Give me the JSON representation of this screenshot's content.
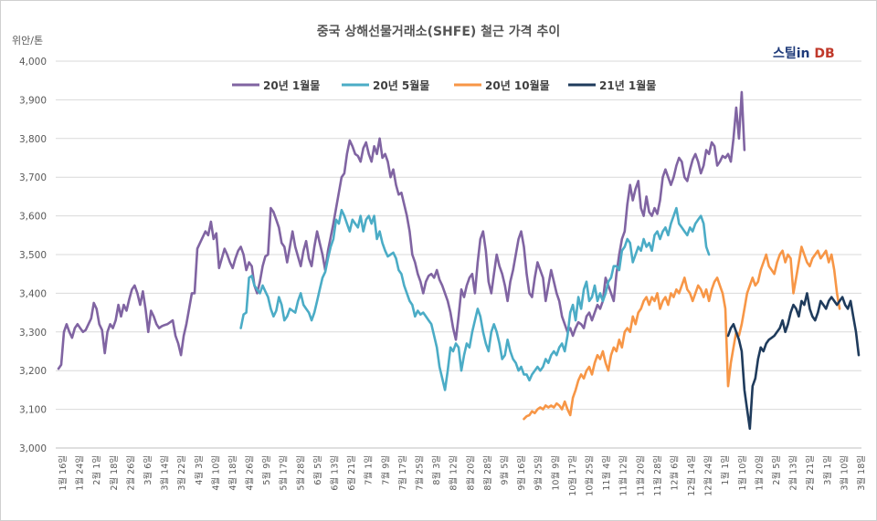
{
  "chart_data": {
    "type": "line",
    "title": "중국 상해선물거래소(SHFE) 철근 가격 추이",
    "ylabel": "위안/톤",
    "xlabel": "",
    "ylim": [
      3000,
      4000
    ],
    "yticks": [
      "3,000",
      "3,100",
      "3,200",
      "3,300",
      "3,400",
      "3,500",
      "3,600",
      "3,700",
      "3,800",
      "3,900",
      "4,000"
    ],
    "grid": "horizontal",
    "legend_position": "top",
    "watermark": "스틸in DB",
    "x_labels": [
      "1월 16일",
      "1월 24일",
      "2월 1일",
      "2월 18일",
      "2월 26일",
      "3월 6일",
      "3월 14일",
      "3월 22일",
      "4월 3일",
      "4월 10일",
      "4월 18일",
      "4월 26일",
      "5월 9일",
      "5월 17일",
      "5월 28일",
      "6월 5일",
      "6월 13일",
      "6월 21일",
      "7월 1일",
      "7월 9일",
      "7월 17일",
      "7월 25일",
      "8월 3일",
      "8월 12일",
      "8월 20일",
      "8월 28일",
      "9월 5일",
      "9월 16일",
      "9월 25일",
      "10월 9일",
      "10월 17일",
      "10월 25일",
      "11월 4일",
      "11월 12일",
      "11월 20일",
      "11월 28일",
      "12월 6일",
      "12월 14일",
      "12월 24일",
      "1월 1일",
      "1월 10일",
      "1월 20일",
      "2월 5일",
      "2월 13일",
      "2월 21일",
      "3월 1일",
      "3월 10일",
      "3월 18일"
    ],
    "series": [
      {
        "name": "20년 1월물",
        "color": "#8064a2",
        "start": 0,
        "values": [
          3205,
          3215,
          3300,
          3320,
          3300,
          3285,
          3310,
          3320,
          3310,
          3300,
          3305,
          3320,
          3335,
          3375,
          3360,
          3320,
          3305,
          3245,
          3300,
          3320,
          3310,
          3330,
          3370,
          3340,
          3370,
          3355,
          3385,
          3410,
          3420,
          3400,
          3370,
          3405,
          3360,
          3300,
          3355,
          3340,
          3320,
          3310,
          3315,
          3318,
          3320,
          3325,
          3330,
          3290,
          3270,
          3240,
          3290,
          3320,
          3360,
          3400,
          3400,
          3515,
          3530,
          3545,
          3560,
          3550,
          3585,
          3540,
          3555,
          3465,
          3490,
          3515,
          3500,
          3480,
          3465,
          3490,
          3510,
          3520,
          3500,
          3460,
          3480,
          3470,
          3420,
          3400,
          3430,
          3470,
          3495,
          3500,
          3620,
          3610,
          3590,
          3570,
          3530,
          3520,
          3480,
          3520,
          3560,
          3520,
          3495,
          3470,
          3510,
          3535,
          3490,
          3470,
          3520,
          3560,
          3530,
          3500,
          3460,
          3510,
          3545,
          3580,
          3620,
          3660,
          3700,
          3710,
          3760,
          3795,
          3780,
          3760,
          3755,
          3740,
          3775,
          3790,
          3760,
          3740,
          3780,
          3760,
          3800,
          3750,
          3760,
          3740,
          3700,
          3720,
          3680,
          3655,
          3660,
          3630,
          3600,
          3560,
          3500,
          3480,
          3450,
          3430,
          3400,
          3430,
          3445,
          3450,
          3440,
          3460,
          3435,
          3420,
          3400,
          3380,
          3350,
          3310,
          3280,
          3340,
          3410,
          3390,
          3420,
          3440,
          3450,
          3400,
          3480,
          3540,
          3560,
          3510,
          3430,
          3400,
          3450,
          3500,
          3470,
          3450,
          3420,
          3380,
          3430,
          3460,
          3500,
          3540,
          3560,
          3520,
          3450,
          3400,
          3390,
          3440,
          3480,
          3460,
          3440,
          3380,
          3420,
          3460,
          3430,
          3400,
          3380,
          3340,
          3320,
          3300,
          3310,
          3290,
          3310,
          3325,
          3320,
          3310,
          3340,
          3350,
          3330,
          3350,
          3370,
          3360,
          3380,
          3440,
          3420,
          3400,
          3380,
          3450,
          3500,
          3540,
          3560,
          3630,
          3680,
          3640,
          3670,
          3690,
          3620,
          3600,
          3650,
          3610,
          3600,
          3620,
          3605,
          3640,
          3700,
          3720,
          3700,
          3680,
          3700,
          3730,
          3750,
          3740,
          3700,
          3690,
          3720,
          3745,
          3760,
          3740,
          3710,
          3730,
          3770,
          3760,
          3790,
          3780,
          3730,
          3740,
          3755,
          3750,
          3760,
          3740,
          3800,
          3880,
          3800,
          3920,
          3770
        ]
      },
      {
        "name": "20년 5월물",
        "color": "#4bacc6",
        "start": 67,
        "values": [
          3310,
          3345,
          3350,
          3440,
          3445,
          3420,
          3410,
          3400,
          3420,
          3405,
          3390,
          3360,
          3340,
          3355,
          3390,
          3370,
          3330,
          3340,
          3360,
          3355,
          3350,
          3380,
          3400,
          3370,
          3360,
          3350,
          3330,
          3350,
          3380,
          3410,
          3440,
          3455,
          3490,
          3520,
          3540,
          3590,
          3580,
          3615,
          3600,
          3580,
          3560,
          3590,
          3580,
          3570,
          3600,
          3560,
          3590,
          3600,
          3580,
          3600,
          3540,
          3560,
          3530,
          3510,
          3495,
          3500,
          3505,
          3490,
          3460,
          3450,
          3420,
          3400,
          3380,
          3370,
          3340,
          3355,
          3345,
          3350,
          3340,
          3330,
          3320,
          3290,
          3260,
          3210,
          3180,
          3150,
          3200,
          3260,
          3250,
          3270,
          3260,
          3200,
          3240,
          3270,
          3260,
          3300,
          3330,
          3360,
          3340,
          3300,
          3270,
          3250,
          3300,
          3320,
          3300,
          3270,
          3230,
          3240,
          3280,
          3250,
          3230,
          3220,
          3200,
          3210,
          3190,
          3190,
          3175,
          3190,
          3200,
          3210,
          3200,
          3210,
          3230,
          3220,
          3240,
          3250,
          3240,
          3260,
          3270,
          3250,
          3290,
          3350,
          3370,
          3330,
          3390,
          3360,
          3410,
          3430,
          3380,
          3390,
          3420,
          3380,
          3400,
          3380,
          3400,
          3430,
          3440,
          3470,
          3470,
          3460,
          3510,
          3520,
          3540,
          3530,
          3480,
          3500,
          3520,
          3510,
          3540,
          3520,
          3530,
          3510,
          3550,
          3560,
          3540,
          3560,
          3570,
          3550,
          3580,
          3600,
          3620,
          3580,
          3570,
          3560,
          3550,
          3570,
          3560,
          3580,
          3590,
          3600,
          3580,
          3520,
          3500
        ]
      },
      {
        "name": "20년 10월물",
        "color": "#f79646",
        "start": 171,
        "values": [
          3075,
          3082,
          3085,
          3095,
          3090,
          3100,
          3105,
          3100,
          3110,
          3105,
          3110,
          3105,
          3115,
          3110,
          3100,
          3120,
          3100,
          3085,
          3130,
          3150,
          3175,
          3190,
          3180,
          3200,
          3210,
          3190,
          3220,
          3240,
          3230,
          3250,
          3220,
          3200,
          3240,
          3260,
          3250,
          3280,
          3260,
          3300,
          3310,
          3300,
          3340,
          3320,
          3350,
          3360,
          3380,
          3390,
          3370,
          3390,
          3380,
          3400,
          3360,
          3380,
          3390,
          3370,
          3400,
          3390,
          3410,
          3400,
          3420,
          3440,
          3410,
          3400,
          3380,
          3400,
          3420,
          3410,
          3390,
          3410,
          3380,
          3410,
          3430,
          3440,
          3420,
          3400,
          3360,
          3160,
          3220,
          3260,
          3300,
          3290,
          3320,
          3360,
          3400,
          3420,
          3440,
          3420,
          3430,
          3460,
          3480,
          3500,
          3470,
          3460,
          3450,
          3480,
          3500,
          3510,
          3480,
          3500,
          3490,
          3400,
          3440,
          3480,
          3520,
          3500,
          3480,
          3470,
          3490,
          3500,
          3510,
          3490,
          3500,
          3510,
          3480,
          3500,
          3460,
          3400,
          3360
        ]
      },
      {
        "name": "21년 1월물",
        "color": "#1f3b5c",
        "start": 246,
        "values": [
          3290,
          3310,
          3320,
          3300,
          3280,
          3250,
          3150,
          3100,
          3050,
          3160,
          3180,
          3230,
          3260,
          3250,
          3270,
          3280,
          3285,
          3290,
          3300,
          3310,
          3330,
          3300,
          3320,
          3350,
          3370,
          3360,
          3340,
          3380,
          3370,
          3400,
          3360,
          3340,
          3330,
          3350,
          3380,
          3370,
          3360,
          3380,
          3390,
          3380,
          3370,
          3380,
          3390,
          3370,
          3360,
          3380,
          3340,
          3300,
          3240
        ]
      }
    ]
  }
}
